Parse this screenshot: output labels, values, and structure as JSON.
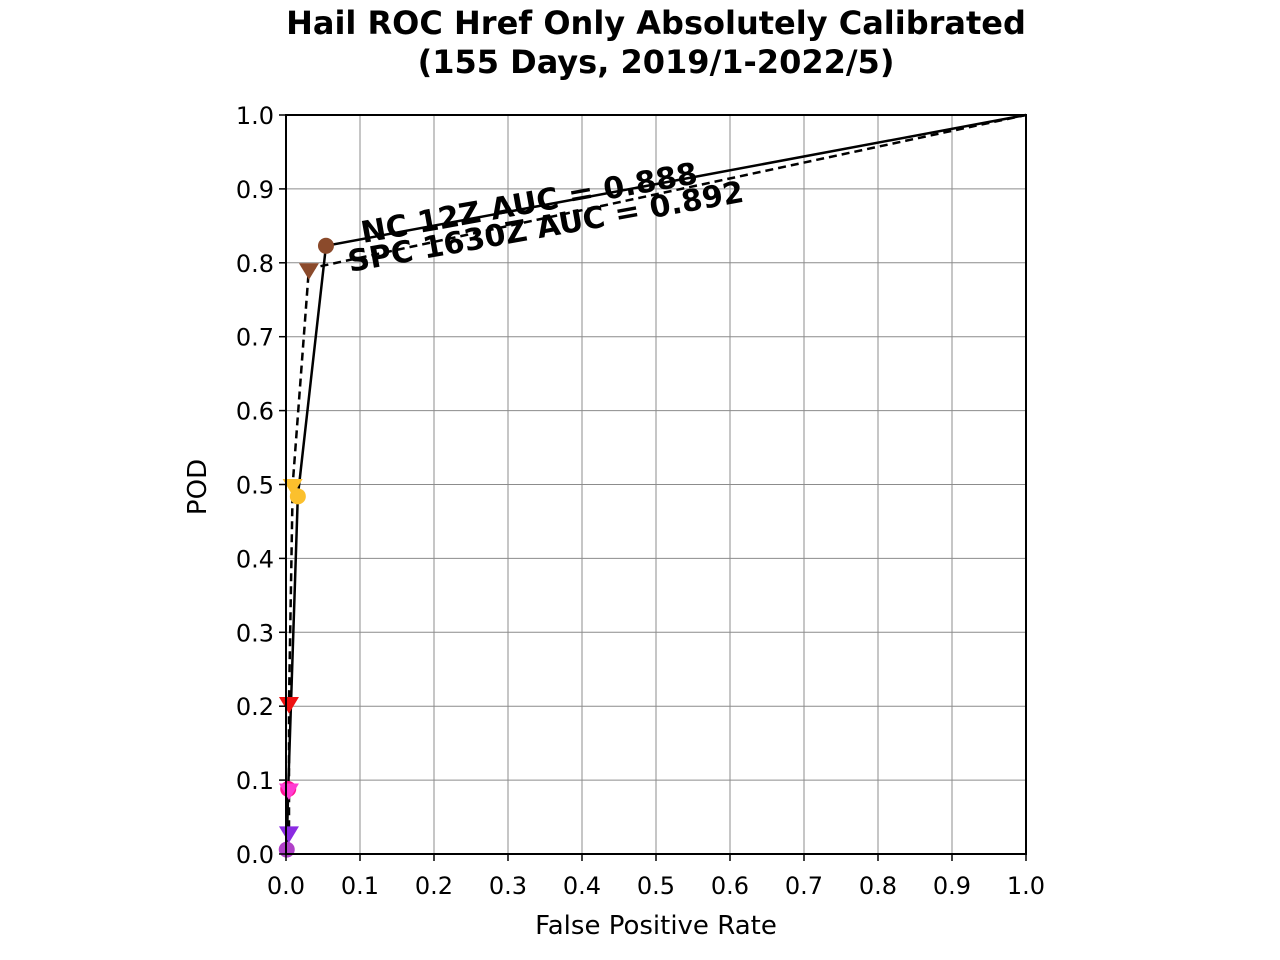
{
  "chart_data": {
    "type": "line",
    "title": [
      "Hail ROC Href Only Absolutely Calibrated",
      "(155 Days, 2019/1-2022/5)"
    ],
    "xlabel": "False Positive Rate",
    "ylabel": "POD",
    "xlim": [
      0,
      1
    ],
    "ylim": [
      0,
      1
    ],
    "xticks": [
      "0.0",
      "0.1",
      "0.2",
      "0.3",
      "0.4",
      "0.5",
      "0.6",
      "0.7",
      "0.8",
      "0.9",
      "1.0"
    ],
    "yticks": [
      "0.0",
      "0.1",
      "0.2",
      "0.3",
      "0.4",
      "0.5",
      "0.6",
      "0.7",
      "0.8",
      "0.9",
      "1.0"
    ],
    "grid": true,
    "series": [
      {
        "name": "NC 12Z",
        "line_style": "solid",
        "marker": "circle",
        "auc_label": "NC 12Z AUC = 0.888",
        "points": [
          {
            "x": 0.0,
            "y": 0.0,
            "color": null
          },
          {
            "x": 0.001,
            "y": 0.006,
            "color": "#b040c8"
          },
          {
            "x": 0.003,
            "y": 0.088,
            "color": "#ff1493"
          },
          {
            "x": 0.016,
            "y": 0.484,
            "color": "#fbc02d"
          },
          {
            "x": 0.054,
            "y": 0.823,
            "color": "#8b4a2b"
          },
          {
            "x": 1.0,
            "y": 1.0,
            "color": null
          }
        ]
      },
      {
        "name": "SPC 1630Z",
        "line_style": "dashed",
        "marker": "triangle-down",
        "auc_label": "SPC 1630Z AUC = 0.892",
        "points": [
          {
            "x": 0.0,
            "y": 0.0,
            "color": null
          },
          {
            "x": 0.004,
            "y": 0.03,
            "color": "#8a2be2"
          },
          {
            "x": 0.004,
            "y": 0.088,
            "color": "#ff3cd2"
          },
          {
            "x": 0.004,
            "y": 0.205,
            "color": "#ee1111"
          },
          {
            "x": 0.009,
            "y": 0.5,
            "color": "#fbc02d"
          },
          {
            "x": 0.031,
            "y": 0.792,
            "color": "#8b4a2b"
          },
          {
            "x": 1.0,
            "y": 1.0,
            "color": null
          }
        ]
      }
    ]
  }
}
